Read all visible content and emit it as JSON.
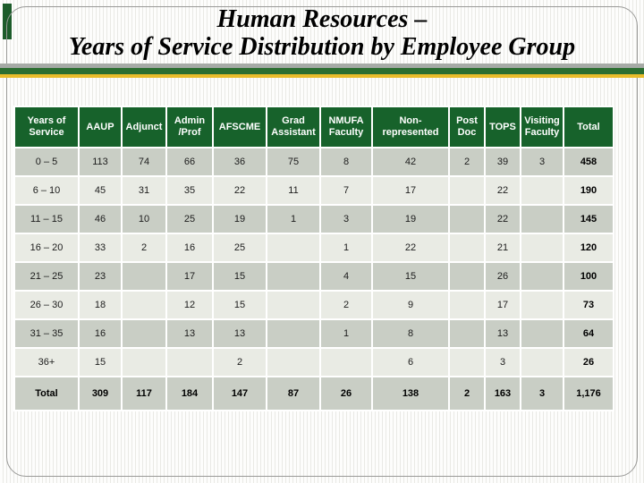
{
  "title": {
    "line1": "Human Resources –",
    "line2": "Years of Service Distribution by Employee Group"
  },
  "table": {
    "columns": [
      "Years of Service",
      "AAUP",
      "Adjunct",
      "Admin /Prof",
      "AFSCME",
      "Grad Assistant",
      "NMUFA Faculty",
      "Non-represented",
      "Post Doc",
      "TOPS",
      "Visiting Faculty",
      "Total"
    ],
    "rows": [
      [
        "0 – 5",
        "113",
        "74",
        "66",
        "36",
        "75",
        "8",
        "42",
        "2",
        "39",
        "3",
        "458"
      ],
      [
        "6 – 10",
        "45",
        "31",
        "35",
        "22",
        "11",
        "7",
        "17",
        "",
        "22",
        "",
        "190"
      ],
      [
        "11 – 15",
        "46",
        "10",
        "25",
        "19",
        "1",
        "3",
        "19",
        "",
        "22",
        "",
        "145"
      ],
      [
        "16 – 20",
        "33",
        "2",
        "16",
        "25",
        "",
        "1",
        "22",
        "",
        "21",
        "",
        "120"
      ],
      [
        "21 – 25",
        "23",
        "",
        "17",
        "15",
        "",
        "4",
        "15",
        "",
        "26",
        "",
        "100"
      ],
      [
        "26 – 30",
        "18",
        "",
        "12",
        "15",
        "",
        "2",
        "9",
        "",
        "17",
        "",
        "73"
      ],
      [
        "31 – 35",
        "16",
        "",
        "13",
        "13",
        "",
        "1",
        "8",
        "",
        "13",
        "",
        "64"
      ],
      [
        "36+",
        "15",
        "",
        "",
        "2",
        "",
        "",
        "6",
        "",
        "3",
        "",
        "26"
      ],
      [
        "Total",
        "309",
        "117",
        "184",
        "147",
        "87",
        "26",
        "138",
        "2",
        "163",
        "3",
        "1,176"
      ]
    ]
  },
  "colors": {
    "header_green": "#17622b",
    "divider_green": "#2c6e31",
    "divider_gold": "#e9bc2b",
    "divider_gray": "#a6aaa6",
    "row_dark": "#c9cec5",
    "row_light": "#e9ebe4",
    "accent_green": "#1d5c2b"
  }
}
